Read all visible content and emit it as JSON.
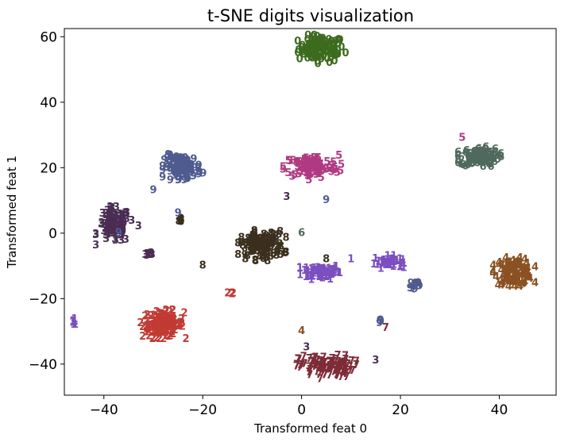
{
  "chart_data": {
    "type": "scatter",
    "title": "t-SNE digits visualization",
    "xlabel": "Transformed feat 0",
    "ylabel": "Transformed feat 1",
    "xlim": [
      -48,
      51.5
    ],
    "ylim": [
      -49.5,
      62.5
    ],
    "xticks": [
      -40,
      -20,
      0,
      20,
      40
    ],
    "yticks": [
      -40,
      -20,
      0,
      20,
      40,
      60
    ],
    "xtick_labels": [
      "−40",
      "−20",
      "0",
      "20",
      "40"
    ],
    "ytick_labels": [
      "−40",
      "−20",
      "0",
      "20",
      "40",
      "60"
    ],
    "grid": false,
    "legend": "none",
    "marker": "digit label text",
    "series": [
      {
        "label": "0",
        "color": "#3d6b1e",
        "clusters": [
          {
            "x": 4,
            "y": 56,
            "sx": 4.2,
            "sy": 3.6,
            "n": 110
          }
        ]
      },
      {
        "label": "1",
        "color": "#7b4fbf",
        "clusters": [
          {
            "x": 4,
            "y": -12,
            "sx": 3.6,
            "sy": 2.0,
            "n": 75
          },
          {
            "x": 17.5,
            "y": -9,
            "sx": 2.6,
            "sy": 1.6,
            "n": 40
          },
          {
            "x": -46,
            "y": -27.5,
            "sx": 0.7,
            "sy": 1.2,
            "n": 10
          }
        ]
      },
      {
        "label": "2",
        "color": "#c13a34",
        "clusters": [
          {
            "x": -28,
            "y": -28,
            "sx": 3.8,
            "sy": 3.6,
            "n": 120
          },
          {
            "x": -14,
            "y": -18.5,
            "sx": 0.8,
            "sy": 0.4,
            "n": 5
          }
        ]
      },
      {
        "label": "3",
        "color": "#4a2d52",
        "clusters": [
          {
            "x": -38,
            "y": 2,
            "sx": 3.0,
            "sy": 4.8,
            "n": 95
          },
          {
            "x": -30.5,
            "y": -6.5,
            "sx": 1.3,
            "sy": 0.5,
            "n": 8
          }
        ]
      },
      {
        "label": "4",
        "color": "#8a5122",
        "clusters": [
          {
            "x": 43,
            "y": -12,
            "sx": 3.5,
            "sy": 3.6,
            "n": 100
          }
        ]
      },
      {
        "label": "5",
        "color": "#b03a82",
        "clusters": [
          {
            "x": 2,
            "y": 20,
            "sx": 5.0,
            "sy": 3.2,
            "n": 100
          }
        ]
      },
      {
        "label": "6",
        "color": "#4f6a5c",
        "clusters": [
          {
            "x": 36,
            "y": 23,
            "sx": 3.6,
            "sy": 2.6,
            "n": 100
          }
        ]
      },
      {
        "label": "7",
        "color": "#7e2c38",
        "clusters": [
          {
            "x": 5,
            "y": -41,
            "sx": 5.0,
            "sy": 3.0,
            "n": 110
          }
        ]
      },
      {
        "label": "8",
        "color": "#3b2f1e",
        "clusters": [
          {
            "x": -8,
            "y": -4,
            "sx": 4.0,
            "sy": 3.8,
            "n": 110
          },
          {
            "x": -24.5,
            "y": 3.5,
            "sx": 0.5,
            "sy": 1.0,
            "n": 6
          }
        ]
      },
      {
        "label": "9",
        "color": "#4f5b8f",
        "clusters": [
          {
            "x": -24,
            "y": 20,
            "sx": 3.4,
            "sy": 3.2,
            "n": 100
          },
          {
            "x": 23,
            "y": -16,
            "sx": 0.9,
            "sy": 1.0,
            "n": 10
          },
          {
            "x": 16,
            "y": -27,
            "sx": 0.5,
            "sy": 0.5,
            "n": 4
          }
        ]
      }
    ],
    "outliers": [
      {
        "label": "6",
        "color": "#4f6a5c",
        "x": 0,
        "y": 0
      },
      {
        "label": "3",
        "color": "#4a2d52",
        "x": -33,
        "y": 2
      },
      {
        "label": "3",
        "color": "#4a2d52",
        "x": -3,
        "y": 11
      },
      {
        "label": "9",
        "color": "#4f5b8f",
        "x": -30,
        "y": 13
      },
      {
        "label": "9",
        "color": "#4f5b8f",
        "x": -37,
        "y": 0
      },
      {
        "label": "9",
        "color": "#4f5b8f",
        "x": -25,
        "y": 6
      },
      {
        "label": "9",
        "color": "#4f5b8f",
        "x": 5,
        "y": 10
      },
      {
        "label": "1",
        "color": "#7b4fbf",
        "x": 10,
        "y": -8
      },
      {
        "label": "8",
        "color": "#3b2f1e",
        "x": -20,
        "y": -10
      },
      {
        "label": "8",
        "color": "#3b2f1e",
        "x": 5,
        "y": -8
      },
      {
        "label": "3",
        "color": "#4a2d52",
        "x": 1,
        "y": -35
      },
      {
        "label": "3",
        "color": "#4a2d52",
        "x": 15,
        "y": -39
      },
      {
        "label": "4",
        "color": "#8a5122",
        "x": 0,
        "y": -30
      },
      {
        "label": "5",
        "color": "#b03a82",
        "x": 32.5,
        "y": 29
      },
      {
        "label": "7",
        "color": "#7e2c38",
        "x": 17,
        "y": -29
      }
    ]
  }
}
